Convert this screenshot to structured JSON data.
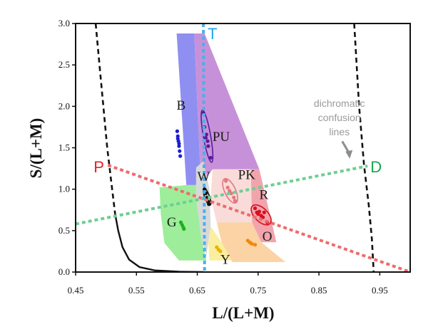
{
  "chart_data": {
    "type": "scatter",
    "title": "",
    "xlabel": "L/(L+M)",
    "ylabel": "S/(L+M)",
    "xlim": [
      0.45,
      1.0
    ],
    "ylim": [
      0.0,
      3.0
    ],
    "x_ticks": [
      "0.45",
      "0.55",
      "0.65",
      "0.75",
      "0.85",
      "0.95"
    ],
    "x_tick_values": [
      0.45,
      0.55,
      0.65,
      0.75,
      0.85,
      0.95
    ],
    "y_ticks": [
      "0.0",
      "0.5",
      "1.0",
      "1.5",
      "2.0",
      "2.5",
      "3.0"
    ],
    "y_tick_values": [
      0.0,
      0.5,
      1.0,
      1.5,
      2.0,
      2.5,
      3.0
    ],
    "grid": false,
    "regions": [
      {
        "name": "B",
        "label": "B",
        "color": "#8f8ff2",
        "polygon": [
          [
            0.616,
            2.88
          ],
          [
            0.645,
            2.88
          ],
          [
            0.656,
            1.05
          ],
          [
            0.632,
            1.05
          ]
        ],
        "label_at": [
          0.616,
          1.96
        ]
      },
      {
        "name": "PU",
        "label": "PU",
        "color": "#c791d9",
        "polygon": [
          [
            0.645,
            2.88
          ],
          [
            0.662,
            2.88
          ],
          [
            0.752,
            1.24
          ],
          [
            0.675,
            1.24
          ],
          [
            0.656,
            1.05
          ]
        ],
        "label_at": [
          0.675,
          1.58
        ]
      },
      {
        "name": "W",
        "label": "W",
        "color": "#d8d8d8",
        "polygon": [
          [
            0.648,
            1.26
          ],
          [
            0.66,
            1.34
          ],
          [
            0.67,
            1.0
          ],
          [
            0.672,
            0.55
          ],
          [
            0.665,
            0.2
          ],
          [
            0.657,
            0.4
          ],
          [
            0.648,
            0.9
          ]
        ],
        "label_at": [
          0.65,
          1.1
        ]
      },
      {
        "name": "PK",
        "label": "PK",
        "color": "#f9dcd9",
        "polygon": [
          [
            0.675,
            1.24
          ],
          [
            0.738,
            1.24
          ],
          [
            0.74,
            0.6
          ],
          [
            0.682,
            0.6
          ],
          [
            0.672,
            0.9
          ]
        ],
        "label_at": [
          0.717,
          1.12
        ]
      },
      {
        "name": "R",
        "label": "R",
        "color": "#f2a4ad",
        "polygon": [
          [
            0.738,
            1.24
          ],
          [
            0.752,
            1.24
          ],
          [
            0.78,
            0.36
          ],
          [
            0.755,
            0.36
          ],
          [
            0.74,
            0.6
          ]
        ],
        "label_at": [
          0.752,
          0.88
        ]
      },
      {
        "name": "G",
        "label": "G",
        "color": "#9ded9a",
        "polygon": [
          [
            0.632,
            1.05
          ],
          [
            0.648,
            1.05
          ],
          [
            0.648,
            0.9
          ],
          [
            0.657,
            0.4
          ],
          [
            0.665,
            0.14
          ],
          [
            0.62,
            0.14
          ],
          [
            0.596,
            0.35
          ],
          [
            0.59,
            0.7
          ],
          [
            0.588,
            1.02
          ]
        ],
        "label_at": [
          0.6,
          0.55
        ]
      },
      {
        "name": "Y",
        "label": "Y",
        "color": "#fbeea0",
        "polygon": [
          [
            0.672,
            0.55
          ],
          [
            0.69,
            0.36
          ],
          [
            0.708,
            0.14
          ],
          [
            0.67,
            0.14
          ],
          [
            0.668,
            0.35
          ]
        ],
        "label_at": [
          0.688,
          0.1
        ]
      },
      {
        "name": "O",
        "label": "O",
        "color": "#fbd3a4",
        "polygon": [
          [
            0.682,
            0.6
          ],
          [
            0.74,
            0.6
          ],
          [
            0.755,
            0.36
          ],
          [
            0.795,
            0.12
          ],
          [
            0.708,
            0.12
          ],
          [
            0.69,
            0.36
          ]
        ],
        "label_at": [
          0.757,
          0.38
        ]
      }
    ],
    "clusters": [
      {
        "name": "B",
        "color": "#1c1cd6",
        "points": [
          [
            0.617,
            1.7
          ],
          [
            0.618,
            1.64
          ],
          [
            0.619,
            1.58
          ],
          [
            0.62,
            1.52
          ],
          [
            0.621,
            1.46
          ],
          [
            0.622,
            1.4
          ],
          [
            0.618,
            1.61
          ],
          [
            0.62,
            1.55
          ]
        ]
      },
      {
        "name": "PU",
        "color": "#5a1a9a",
        "points": [
          [
            0.66,
            1.92
          ],
          [
            0.662,
            1.75
          ],
          [
            0.664,
            1.62
          ],
          [
            0.667,
            1.58
          ],
          [
            0.668,
            1.52
          ],
          [
            0.672,
            1.38
          ],
          [
            0.665,
            1.66
          ]
        ],
        "ellipse": {
          "cx": 0.666,
          "cy": 1.64,
          "rx": 0.006,
          "ry": 0.32,
          "rotate": -10
        }
      },
      {
        "name": "W",
        "color": "#111111",
        "points": [
          [
            0.662,
            1.0
          ],
          [
            0.664,
            0.95
          ],
          [
            0.666,
            0.9
          ],
          [
            0.668,
            0.85
          ],
          [
            0.669,
            0.82
          ]
        ],
        "ellipse": {
          "cx": 0.666,
          "cy": 0.91,
          "rx": 0.004,
          "ry": 0.11,
          "rotate": -20
        }
      },
      {
        "name": "PK",
        "color": "#e2787e",
        "points": [
          [
            0.697,
            1.1
          ],
          [
            0.7,
            1.02
          ],
          [
            0.703,
            0.98
          ],
          [
            0.706,
            0.95
          ],
          [
            0.71,
            0.9
          ],
          [
            0.712,
            0.86
          ]
        ],
        "ellipse": {
          "cx": 0.704,
          "cy": 0.98,
          "rx": 0.009,
          "ry": 0.16,
          "rotate": -25
        }
      },
      {
        "name": "R",
        "color": "#d60f1f",
        "points": [
          [
            0.745,
            0.77
          ],
          [
            0.748,
            0.72
          ],
          [
            0.75,
            0.7
          ],
          [
            0.752,
            0.73
          ],
          [
            0.755,
            0.68
          ],
          [
            0.758,
            0.66
          ],
          [
            0.76,
            0.72
          ],
          [
            0.765,
            0.6
          ]
        ],
        "ellipse": {
          "cx": 0.755,
          "cy": 0.69,
          "rx": 0.011,
          "ry": 0.15,
          "rotate": -45
        }
      },
      {
        "name": "G",
        "color": "#1fb01f",
        "points": [
          [
            0.623,
            0.6
          ],
          [
            0.625,
            0.57
          ],
          [
            0.627,
            0.54
          ],
          [
            0.628,
            0.52
          ]
        ]
      },
      {
        "name": "Y",
        "color": "#e6b400",
        "points": [
          [
            0.682,
            0.3
          ],
          [
            0.685,
            0.27
          ],
          [
            0.688,
            0.25
          ]
        ]
      },
      {
        "name": "O",
        "color": "#ee8a10",
        "points": [
          [
            0.733,
            0.38
          ],
          [
            0.736,
            0.36
          ],
          [
            0.74,
            0.34
          ],
          [
            0.745,
            0.33
          ],
          [
            0.738,
            0.35
          ]
        ]
      }
    ],
    "confusion_lines": [
      {
        "name": "P",
        "label": "P",
        "color": "#ef6b6b",
        "label_color": "#ee1c1c",
        "from": [
          0.503,
          1.29
        ],
        "to": [
          1.0,
          0.0
        ]
      },
      {
        "name": "D",
        "label": "D",
        "color": "#6fce93",
        "label_color": "#14a850",
        "from": [
          0.45,
          0.58
        ],
        "to": [
          0.93,
          1.28
        ]
      },
      {
        "name": "T",
        "label": "T",
        "color": "#4cb0e8",
        "label_color": "#1ea9e6",
        "from": [
          0.66,
          3.0
        ],
        "to": [
          0.662,
          0.0
        ]
      }
    ],
    "boundary_curves": [
      {
        "name": "left-spectral-dashed",
        "style": "dashed",
        "points": [
          [
            0.483,
            3.0
          ],
          [
            0.493,
            2.2
          ],
          [
            0.502,
            1.5
          ],
          [
            0.51,
            1.0
          ],
          [
            0.515,
            0.7
          ]
        ]
      },
      {
        "name": "left-spectral-solid",
        "style": "solid",
        "points": [
          [
            0.515,
            0.7
          ],
          [
            0.52,
            0.5
          ],
          [
            0.527,
            0.3
          ],
          [
            0.538,
            0.15
          ],
          [
            0.555,
            0.06
          ],
          [
            0.58,
            0.02
          ],
          [
            0.62,
            0.004
          ],
          [
            0.66,
            0.0
          ]
        ]
      },
      {
        "name": "right-spectral-dashed",
        "style": "dashed",
        "points": [
          [
            0.908,
            3.0
          ],
          [
            0.916,
            2.0
          ],
          [
            0.924,
            1.3
          ],
          [
            0.932,
            0.8
          ],
          [
            0.937,
            0.4
          ],
          [
            0.94,
            0.0
          ]
        ]
      }
    ],
    "annotations": [
      {
        "lines": [
          "dichromatic",
          "confusion",
          "lines"
        ],
        "arrow_from": [
          0.9,
          1.62
        ],
        "arrow_to": [
          0.91,
          1.36
        ]
      }
    ]
  }
}
